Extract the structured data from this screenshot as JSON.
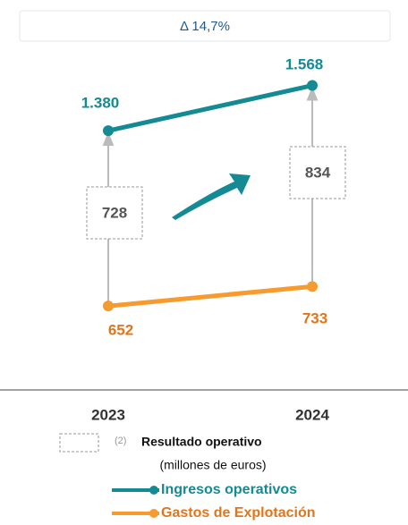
{
  "chart_data": {
    "type": "line",
    "annotation": "Δ 14,7%",
    "categories": [
      "2023",
      "2024"
    ],
    "series": [
      {
        "name": "Ingresos operativos",
        "color": "#138a94",
        "label_color": "#138a94",
        "values": [
          1380,
          1568
        ],
        "value_labels": [
          "1.380",
          "1.568"
        ]
      },
      {
        "name": "Gastos de Explotación",
        "color": "#f79b2e",
        "label_color": "#e0761b",
        "values": [
          652,
          733
        ]
      }
    ],
    "difference": {
      "name": "Resultado operativo",
      "note": "(2)",
      "values": [
        728,
        834
      ]
    },
    "subtitle": "(millones  de euros)",
    "ylim": [
      400,
      1700
    ]
  }
}
